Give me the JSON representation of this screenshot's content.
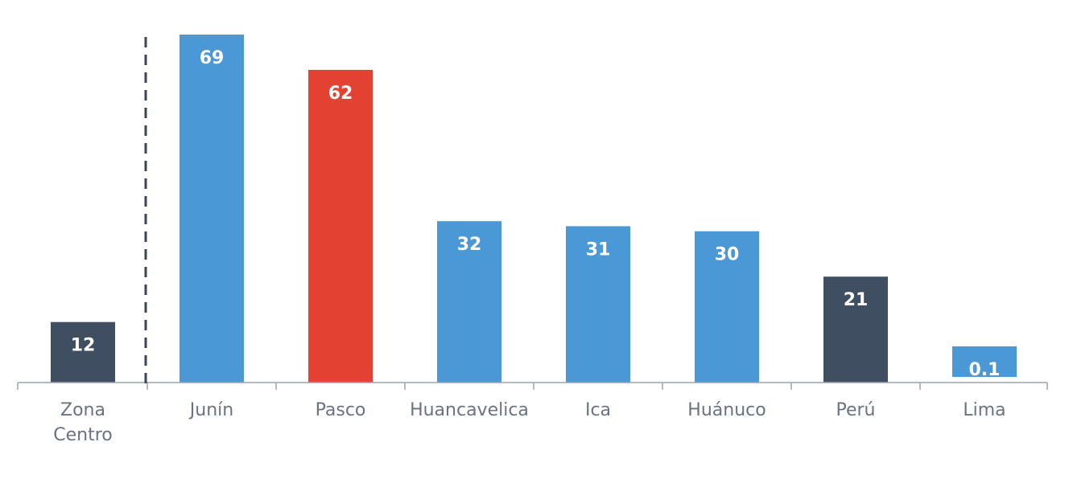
{
  "chart_data": {
    "type": "bar",
    "categories": [
      "Zona Centro",
      "Junín",
      "Pasco",
      "Huancavelica",
      "Ica",
      "Huánuco",
      "Perú",
      "Lima"
    ],
    "values": [
      12,
      69,
      62,
      32,
      31,
      30,
      21,
      0.1
    ],
    "value_labels": [
      "12",
      "69",
      "62",
      "32",
      "31",
      "30",
      "21",
      "0.1"
    ],
    "bar_colors": [
      "#404e62",
      "#4a98d6",
      "#e34232",
      "#4a98d6",
      "#4a98d6",
      "#4a98d6",
      "#404e62",
      "#4a98d6"
    ],
    "ylim": [
      0,
      69
    ],
    "title": "",
    "xlabel": "",
    "ylabel": "",
    "grid": false,
    "legend": "none",
    "separator_after_category": "Zona Centro"
  },
  "colors": {
    "axis": "#9ca3af",
    "separator": "#3b4556",
    "label_text": "#6b7280",
    "value_text": "#ffffff"
  }
}
